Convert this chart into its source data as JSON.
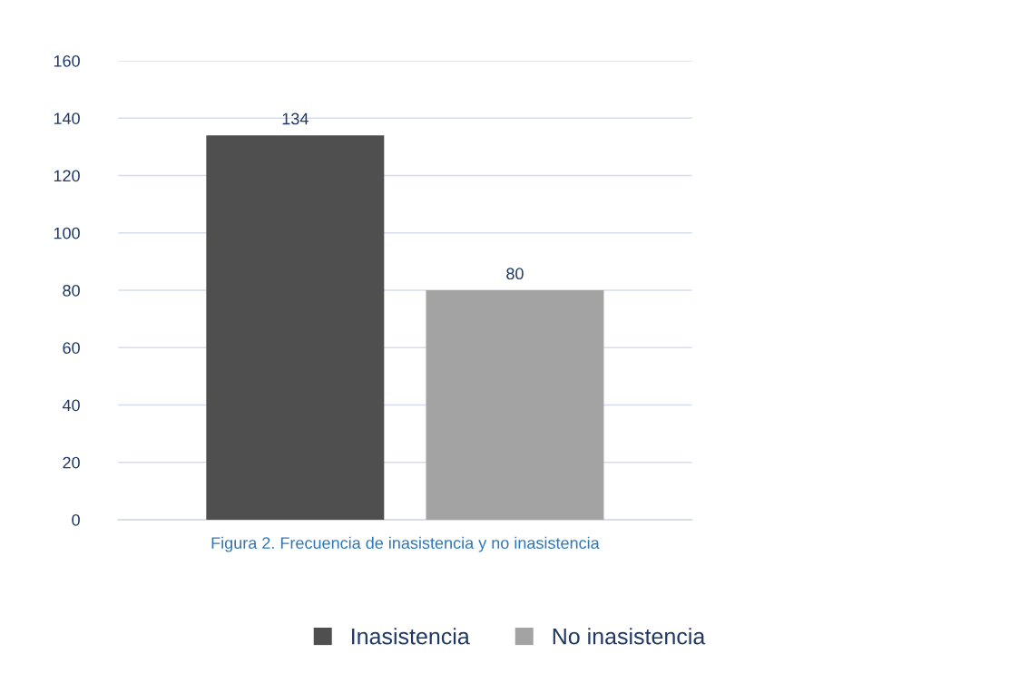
{
  "chart_data": {
    "type": "bar",
    "xlabel": "Figura 2. Frecuencia de inasistencia y no inasistencia",
    "categories": [
      null
    ],
    "series": [
      {
        "name": "Inasistencia",
        "color": "#4f4f4f",
        "values": [
          134
        ]
      },
      {
        "name": "No inasistencia",
        "color": "#a3a3a3",
        "values": [
          80
        ]
      }
    ],
    "ylim": [
      0,
      160
    ],
    "yticks": [
      0,
      20,
      40,
      60,
      80,
      100,
      120,
      140,
      160
    ],
    "grid": "y",
    "legend": "bottom",
    "data_labels": true
  }
}
